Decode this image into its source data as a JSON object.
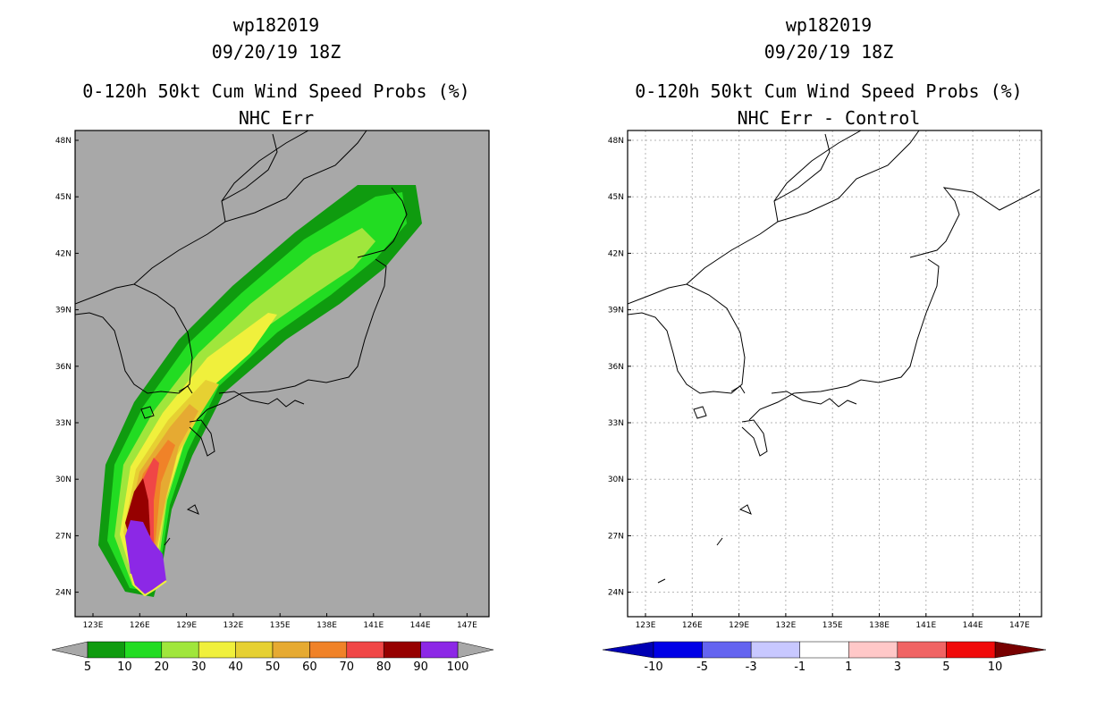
{
  "panels": [
    {
      "storm_id": "wp182019",
      "date": "09/20/19 18Z",
      "product": "0-120h 50kt Cum Wind Speed Probs (%)",
      "subtitle": "NHC Err",
      "map_background": "#a8a8a8",
      "colorbar": {
        "labels": [
          "5",
          "10",
          "20",
          "30",
          "40",
          "50",
          "60",
          "70",
          "80",
          "90",
          "100"
        ],
        "colors": [
          "#0f9b0f",
          "#22dc22",
          "#a0e63c",
          "#f0f03c",
          "#e6d032",
          "#e6aa32",
          "#f08228",
          "#f04646",
          "#960000",
          "#8c28e6"
        ],
        "end_colors": [
          "#a8a8a8",
          "#a8a8a8"
        ]
      }
    },
    {
      "storm_id": "wp182019",
      "date": "09/20/19 18Z",
      "product": "0-120h 50kt Cum Wind Speed Probs (%)",
      "subtitle": "NHC Err - Control",
      "map_background": "#ffffff",
      "colorbar": {
        "labels": [
          "-10",
          "-5",
          "-3",
          "-1",
          "1",
          "3",
          "5",
          "10"
        ],
        "colors": [
          "#0000e6",
          "#6464f0",
          "#c8c8ff",
          "#ffffff",
          "#ffc8c8",
          "#f06464",
          "#f00a0a"
        ],
        "end_colors": [
          "#0000b4",
          "#780000"
        ]
      }
    }
  ],
  "axes": {
    "lon_ticks": [
      "123E",
      "126E",
      "129E",
      "132E",
      "135E",
      "138E",
      "141E",
      "144E",
      "147E"
    ],
    "lat_ticks": [
      "48N",
      "45N",
      "42N",
      "39N",
      "36N",
      "33N",
      "30N",
      "27N",
      "24N"
    ]
  }
}
